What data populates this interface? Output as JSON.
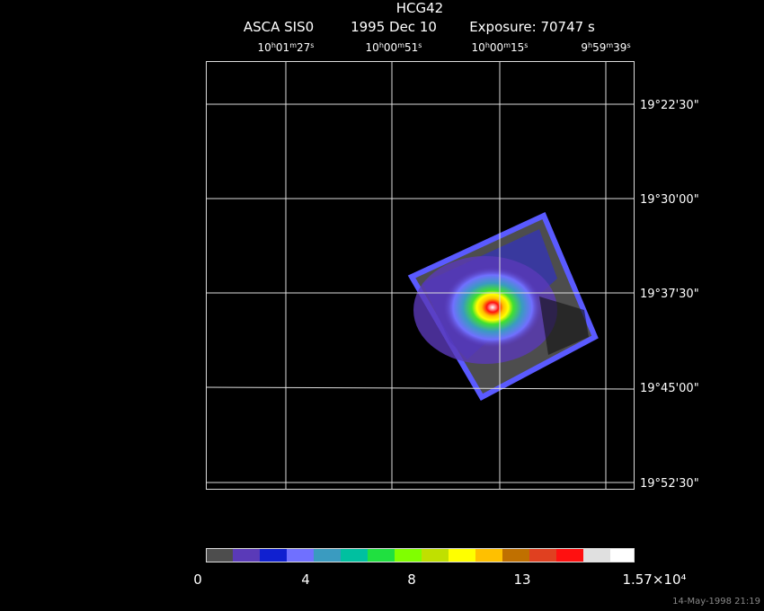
{
  "header": {
    "object": "HCG42",
    "instrument": "ASCA SIS0",
    "date": "1995 Dec 10",
    "exposure": "Exposure: 70747 s"
  },
  "ra_labels": [
    "10h01m27s",
    "10h00m51s",
    "10h00m15s",
    "9h59m39s"
  ],
  "dec_labels": [
    "19°22'30\"",
    "19°30'00\"",
    "19°37'30\"",
    "19°45'00\"",
    "19°52'30\""
  ],
  "colorbar_labels": [
    "0",
    "4",
    "8",
    "13",
    "1.57×10⁴"
  ],
  "timestamp": "14-May-1998 21:19"
}
